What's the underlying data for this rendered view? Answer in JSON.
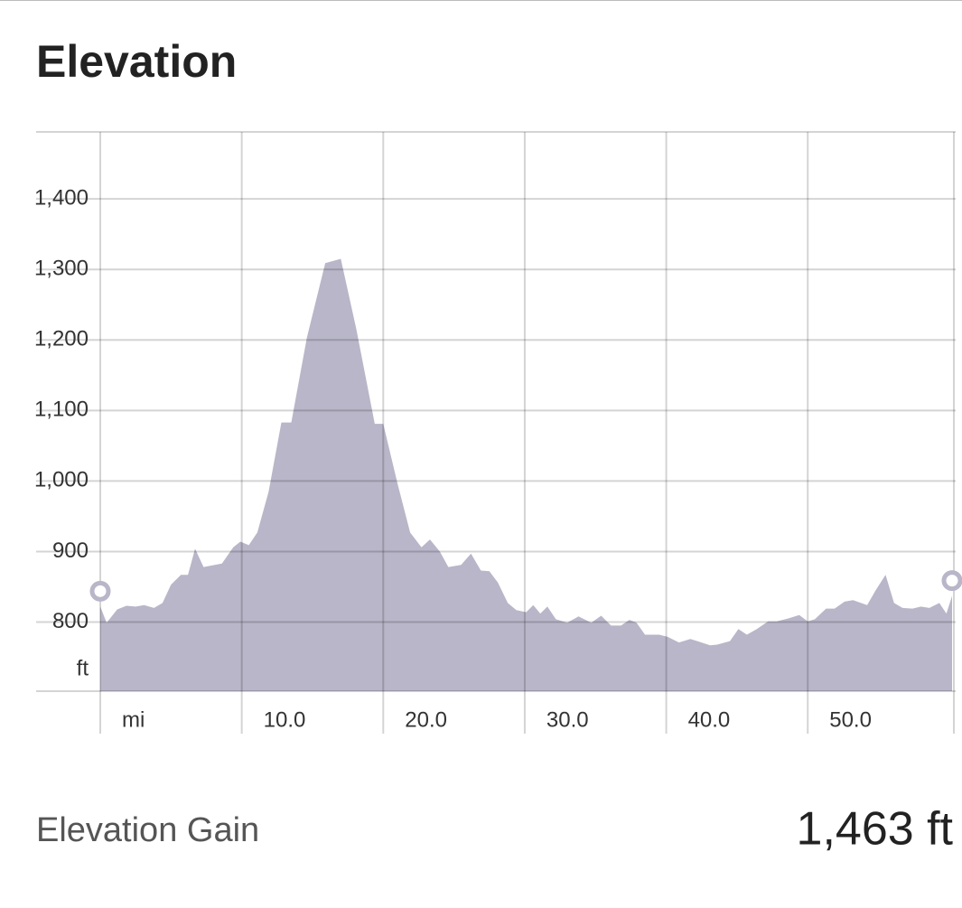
{
  "header": {
    "title": "Elevation"
  },
  "chart_data": {
    "type": "area",
    "x_label": "mi",
    "y_label": "ft",
    "color": "#b8b6c8",
    "grid": true,
    "x": [
      0,
      0.45,
      1.2,
      1.85,
      2.5,
      3.1,
      3.8,
      4.4,
      5.0,
      5.7,
      6.2,
      6.7,
      7.3,
      8.6,
      9.4,
      9.9,
      10.5,
      11.1,
      11.9,
      12.8,
      13.5,
      14.6,
      15.9,
      17.0,
      18.1,
      19.4,
      20.0,
      21.0,
      21.9,
      22.7,
      23.3,
      24.0,
      24.6,
      25.5,
      26.2,
      26.9,
      27.5,
      28.1,
      28.8,
      29.4,
      30.1,
      30.6,
      31.1,
      31.6,
      32.2,
      33.0,
      33.8,
      34.7,
      35.4,
      36.1,
      36.8,
      37.4,
      37.9,
      38.5,
      39.5,
      40.1,
      40.9,
      41.7,
      42.2,
      43.1,
      43.6,
      44.5,
      45.1,
      45.7,
      46.4,
      47.2,
      47.8,
      48.6,
      49.4,
      50.0,
      50.5,
      51.3,
      51.9,
      52.6,
      53.2,
      54.2,
      54.8,
      55.5,
      56.1,
      56.7,
      57.4,
      58.0,
      58.6,
      59.3,
      59.8,
      60.2
    ],
    "values": [
      822,
      799,
      818,
      823,
      822,
      824,
      820,
      827,
      853,
      867,
      867,
      904,
      878,
      883,
      906,
      914,
      909,
      927,
      985,
      1083,
      1083,
      1203,
      1309,
      1315,
      1215,
      1081,
      1081,
      997,
      927,
      906,
      917,
      900,
      878,
      881,
      897,
      873,
      872,
      856,
      827,
      817,
      814,
      824,
      812,
      822,
      804,
      799,
      808,
      799,
      809,
      795,
      795,
      803,
      799,
      782,
      782,
      779,
      771,
      776,
      773,
      767,
      768,
      773,
      790,
      782,
      790,
      801,
      801,
      805,
      810,
      801,
      804,
      819,
      819,
      829,
      831,
      824,
      845,
      867,
      827,
      820,
      819,
      822,
      820,
      827,
      812,
      837
    ],
    "xlim": [
      0,
      60.2
    ],
    "ylim": [
      702,
      1495
    ],
    "xticks": [
      {
        "value": 0,
        "label": "mi"
      },
      {
        "value": 10,
        "label": "10.0"
      },
      {
        "value": 20,
        "label": "20.0"
      },
      {
        "value": 30,
        "label": "30.0"
      },
      {
        "value": 40,
        "label": "40.0"
      },
      {
        "value": 50,
        "label": "50.0"
      }
    ],
    "yticks": [
      {
        "value": 800,
        "label": "800"
      },
      {
        "value": 900,
        "label": "900"
      },
      {
        "value": 1000,
        "label": "1,000"
      },
      {
        "value": 1100,
        "label": "1,100"
      },
      {
        "value": 1200,
        "label": "1,200"
      },
      {
        "value": 1300,
        "label": "1,300"
      },
      {
        "value": 1400,
        "label": "1,400"
      }
    ]
  },
  "stats": {
    "label": "Elevation Gain",
    "value": "1,463 ft"
  }
}
